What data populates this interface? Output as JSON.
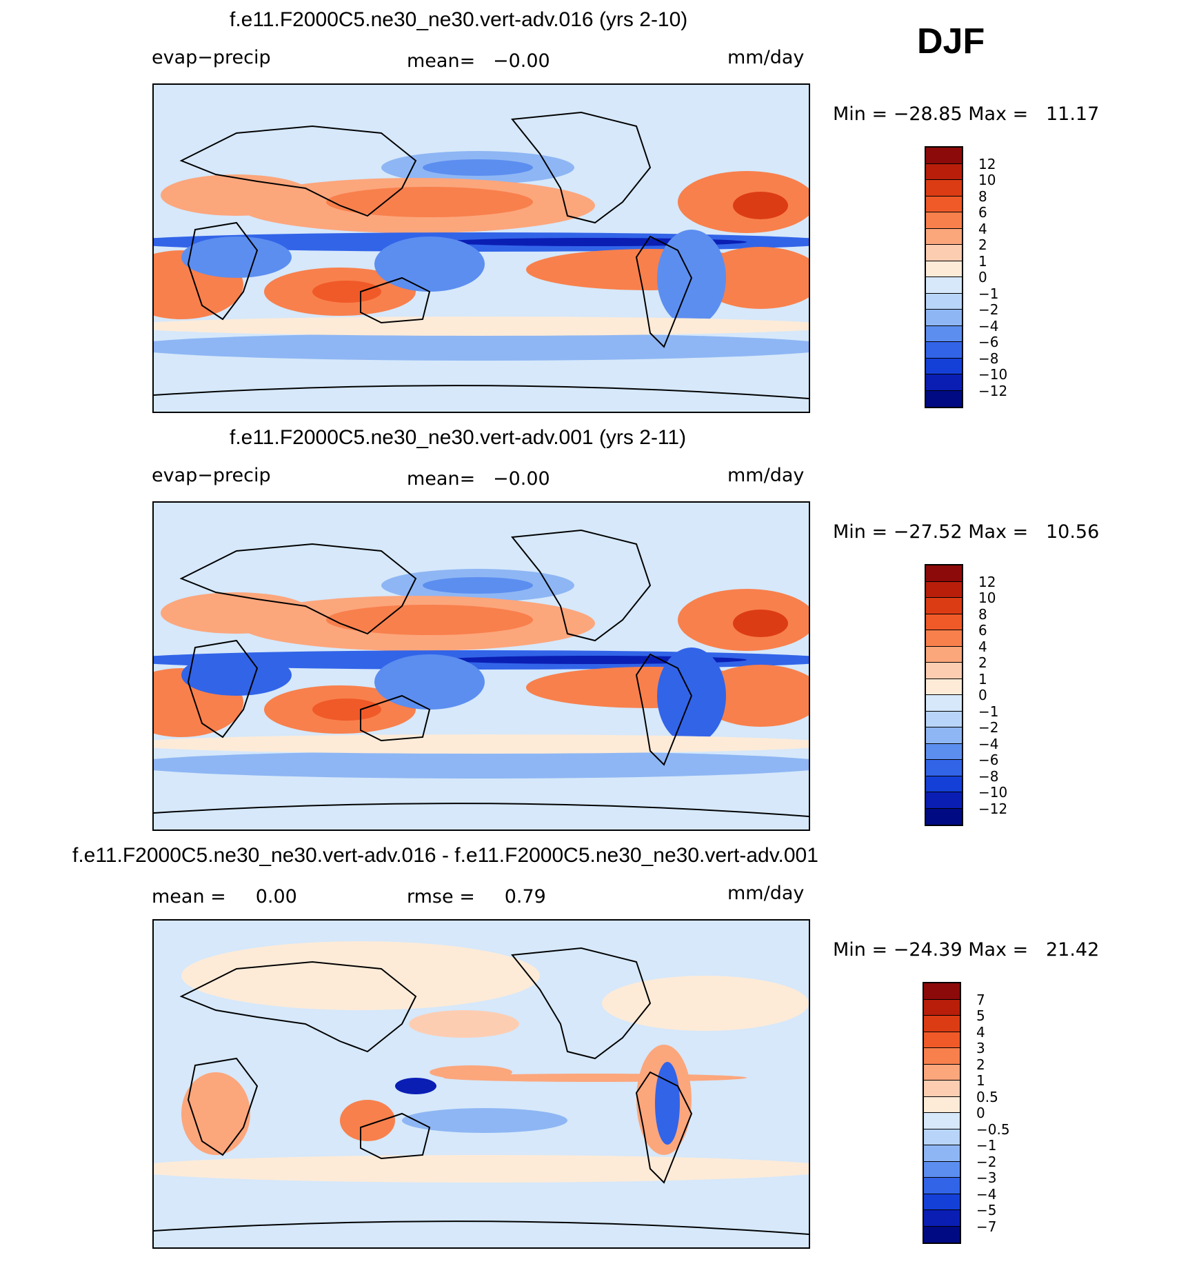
{
  "season": "DJF",
  "panels": [
    {
      "title": "f.e11.F2000C5.ne30_ne30.vert-adv.016 (yrs 2-10)",
      "left_label": "evap−precip",
      "center_label": "mean=   −0.00",
      "units": "mm/day",
      "minmax": "Min = −28.85 Max =   11.17",
      "colorbar_labels": [
        "12",
        "10",
        "8",
        "6",
        "4",
        "2",
        "1",
        "0",
        "−1",
        "−2",
        "−4",
        "−6",
        "−8",
        "−10",
        "−12"
      ],
      "colorbar_colors": [
        "#8c0a0a",
        "#b81e0a",
        "#dc3c14",
        "#f05a28",
        "#f8804c",
        "#fca67c",
        "#fdcdb2",
        "#fdebd8",
        "#d6e8fa",
        "#b8d4f8",
        "#8eb6f4",
        "#5c8ef0",
        "#3264e8",
        "#1440d8",
        "#0a1eb4",
        "#000a82"
      ]
    },
    {
      "title": "f.e11.F2000C5.ne30_ne30.vert-adv.001 (yrs 2-11)",
      "left_label": "evap−precip",
      "center_label": "mean=   −0.00",
      "units": "mm/day",
      "minmax": "Min = −27.52 Max =   10.56",
      "colorbar_labels": [
        "12",
        "10",
        "8",
        "6",
        "4",
        "2",
        "1",
        "0",
        "−1",
        "−2",
        "−4",
        "−6",
        "−8",
        "−10",
        "−12"
      ],
      "colorbar_colors": [
        "#8c0a0a",
        "#b81e0a",
        "#dc3c14",
        "#f05a28",
        "#f8804c",
        "#fca67c",
        "#fdcdb2",
        "#fdebd8",
        "#d6e8fa",
        "#b8d4f8",
        "#8eb6f4",
        "#5c8ef0",
        "#3264e8",
        "#1440d8",
        "#0a1eb4",
        "#000a82"
      ]
    },
    {
      "title": "f.e11.F2000C5.ne30_ne30.vert-adv.016 - f.e11.F2000C5.ne30_ne30.vert-adv.001",
      "left_label": "mean =     0.00",
      "center_label": "rmse =     0.79",
      "units": "mm/day",
      "minmax": "Min = −24.39 Max =   21.42",
      "colorbar_labels": [
        "7",
        "5",
        "4",
        "3",
        "2",
        "1",
        "0.5",
        "0",
        "−0.5",
        "−1",
        "−2",
        "−3",
        "−4",
        "−5",
        "−7"
      ],
      "colorbar_colors": [
        "#8c0a0a",
        "#b81e0a",
        "#dc3c14",
        "#f05a28",
        "#f8804c",
        "#fca67c",
        "#fdcdb2",
        "#fdebd8",
        "#d6e8fa",
        "#b8d4f8",
        "#8eb6f4",
        "#5c8ef0",
        "#3264e8",
        "#1440d8",
        "#0a1eb4",
        "#000a82"
      ]
    }
  ]
}
